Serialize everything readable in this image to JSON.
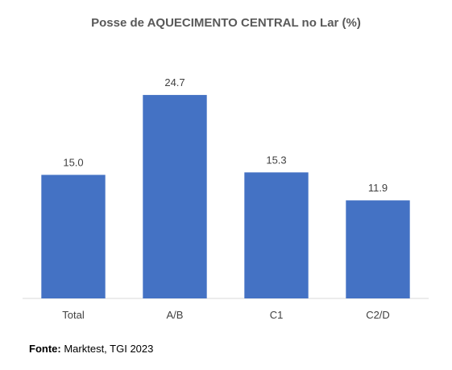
{
  "chart_data": {
    "type": "bar",
    "title": "Posse de AQUECIMENTO CENTRAL no Lar (%)",
    "categories": [
      "Total",
      "A/B",
      "C1",
      "C2/D"
    ],
    "values": [
      15.0,
      24.7,
      15.3,
      11.9
    ],
    "value_labels": [
      "15.0",
      "24.7",
      "15.3",
      "11.9"
    ],
    "bar_color": "#4472C4",
    "xlabel": "",
    "ylabel": "",
    "ylim": [
      0,
      25
    ],
    "grid": false,
    "legend": "none"
  },
  "source": {
    "label": "Fonte:",
    "text": "Marktest, TGI 2023"
  }
}
